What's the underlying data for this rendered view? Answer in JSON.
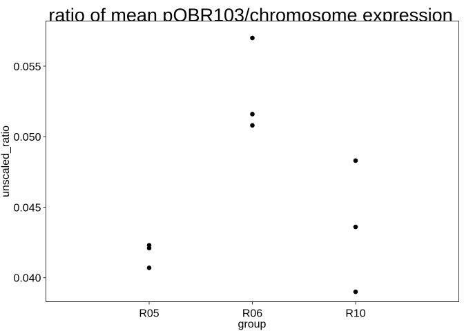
{
  "chart_data": {
    "type": "scatter",
    "title": "ratio of mean pQBR103/chromosome expression",
    "xlabel": "group",
    "ylabel": "unscaled_ratio",
    "categories": [
      "R05",
      "R06",
      "R10"
    ],
    "ylim": [
      0.0383,
      0.0582
    ],
    "yticks": [
      0.04,
      0.045,
      0.05,
      0.055
    ],
    "ytick_labels": [
      "0.040",
      "0.045",
      "0.050",
      "0.055"
    ],
    "grid": false,
    "legend": "none",
    "point_color": "#000000",
    "series": [
      {
        "points": [
          {
            "x": "R05",
            "y": 0.0423
          },
          {
            "x": "R05",
            "y": 0.0421
          },
          {
            "x": "R05",
            "y": 0.0407
          },
          {
            "x": "R06",
            "y": 0.057
          },
          {
            "x": "R06",
            "y": 0.0516
          },
          {
            "x": "R06",
            "y": 0.0508
          },
          {
            "x": "R10",
            "y": 0.0483
          },
          {
            "x": "R10",
            "y": 0.0436
          },
          {
            "x": "R10",
            "y": 0.039
          }
        ]
      }
    ]
  }
}
